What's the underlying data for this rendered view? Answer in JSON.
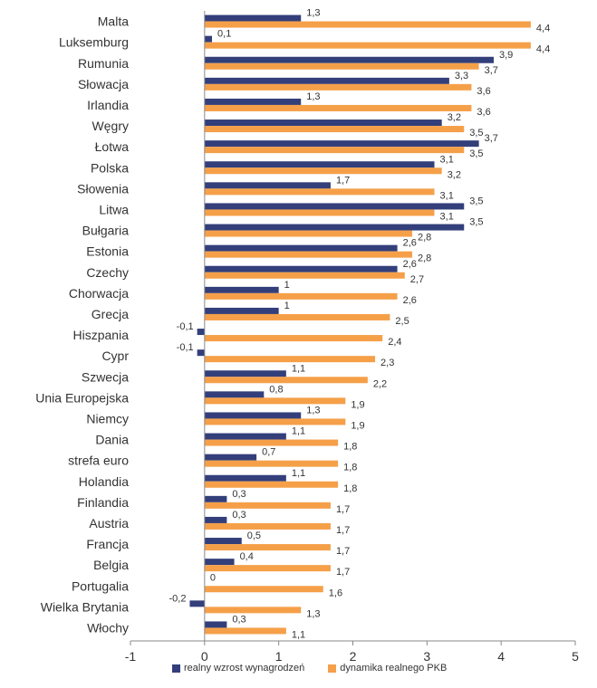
{
  "chart_data": {
    "type": "bar",
    "orientation": "horizontal",
    "categories": [
      "Malta",
      "Luksemburg",
      "Rumunia",
      "Słowacja",
      "Irlandia",
      "Węgry",
      "Łotwa",
      "Polska",
      "Słowenia",
      "Litwa",
      "Bułgaria",
      "Estonia",
      "Czechy",
      "Chorwacja",
      "Grecja",
      "Hiszpania",
      "Cypr",
      "Szwecja",
      "Unia Europejska",
      "Niemcy",
      "Dania",
      "strefa euro",
      "Holandia",
      "Finlandia",
      "Austria",
      "Francja",
      "Belgia",
      "Portugalia",
      "Wielka Brytania",
      "Włochy"
    ],
    "series": [
      {
        "name": "realny wzrost wynagrodzeń",
        "color": "#333F7A",
        "values": [
          1.3,
          0.1,
          3.9,
          3.3,
          1.3,
          3.2,
          3.7,
          3.1,
          1.7,
          3.5,
          3.5,
          2.6,
          2.6,
          1,
          1,
          -0.1,
          -0.1,
          1.1,
          0.8,
          1.3,
          1.1,
          0.7,
          1.1,
          0.3,
          0.3,
          0.5,
          0.4,
          0,
          -0.2,
          0.3
        ],
        "labels": [
          "1,3",
          "0,1",
          "3,9",
          "3,3",
          "1,3",
          "3,2",
          "3,7",
          "3,1",
          "1,7",
          "3,5",
          "3,5",
          "2,6",
          "2,6",
          "1",
          "1",
          "-0,1",
          "-0,1",
          "1,1",
          "0,8",
          "1,3",
          "1,1",
          "0,7",
          "1,1",
          "0,3",
          "0,3",
          "0,5",
          "0,4",
          "0",
          "-0,2",
          "0,3"
        ]
      },
      {
        "name": "dynamika realnego PKB",
        "color": "#F5A049",
        "values": [
          4.4,
          4.4,
          3.7,
          3.6,
          3.6,
          3.5,
          3.5,
          3.2,
          3.1,
          3.1,
          2.8,
          2.8,
          2.7,
          2.6,
          2.5,
          2.4,
          2.3,
          2.2,
          1.9,
          1.9,
          1.8,
          1.8,
          1.8,
          1.7,
          1.7,
          1.7,
          1.7,
          1.6,
          1.3,
          1.1
        ],
        "labels": [
          "4,4",
          "4,4",
          "3,7",
          "3,6",
          "3,6",
          "3,5",
          "3,5",
          "3,2",
          "3,1",
          "3,1",
          "2,8",
          "2,8",
          "2,7",
          "2,6",
          "2,5",
          "2,4",
          "2,3",
          "2,2",
          "1,9",
          "1,9",
          "1,8",
          "1,8",
          "1,8",
          "1,7",
          "1,7",
          "1,7",
          "1,7",
          "1,6",
          "1,3",
          "1,1"
        ]
      }
    ],
    "xlim": [
      -1,
      5
    ],
    "x_ticks": [
      "-1",
      "0",
      "1",
      "2",
      "3",
      "4",
      "5"
    ],
    "grid": false,
    "legend_position": "bottom"
  }
}
